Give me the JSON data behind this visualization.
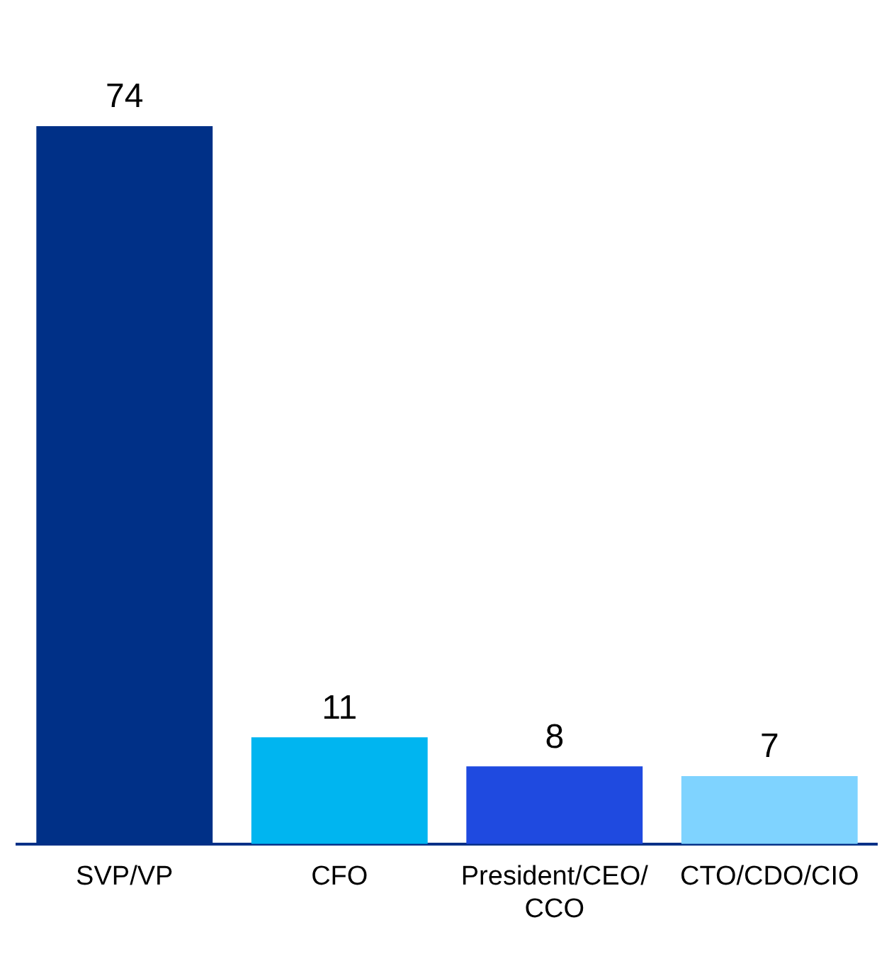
{
  "chart_data": {
    "type": "bar",
    "categories": [
      "SVP/VP",
      "CFO",
      "President/CEO/CCO",
      "CTO/CDO/CIO"
    ],
    "values": [
      74,
      11,
      8,
      7
    ],
    "colors": [
      "#003087",
      "#00b5f0",
      "#1f4ae0",
      "#7fd3ff"
    ],
    "data_labels": true,
    "grid": false,
    "legend": false
  }
}
